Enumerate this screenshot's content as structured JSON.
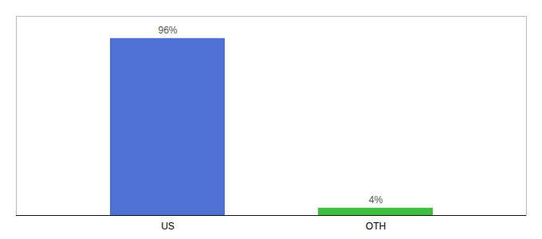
{
  "chart_data": {
    "type": "bar",
    "categories": [
      "US",
      "OTH"
    ],
    "values": [
      96,
      4
    ],
    "colors": [
      "#4d72d4",
      "#3dbf3d"
    ],
    "value_labels": [
      "96%",
      "4%"
    ],
    "data_labels": true,
    "ylim": [
      0,
      108
    ],
    "tick_labels": "x"
  }
}
